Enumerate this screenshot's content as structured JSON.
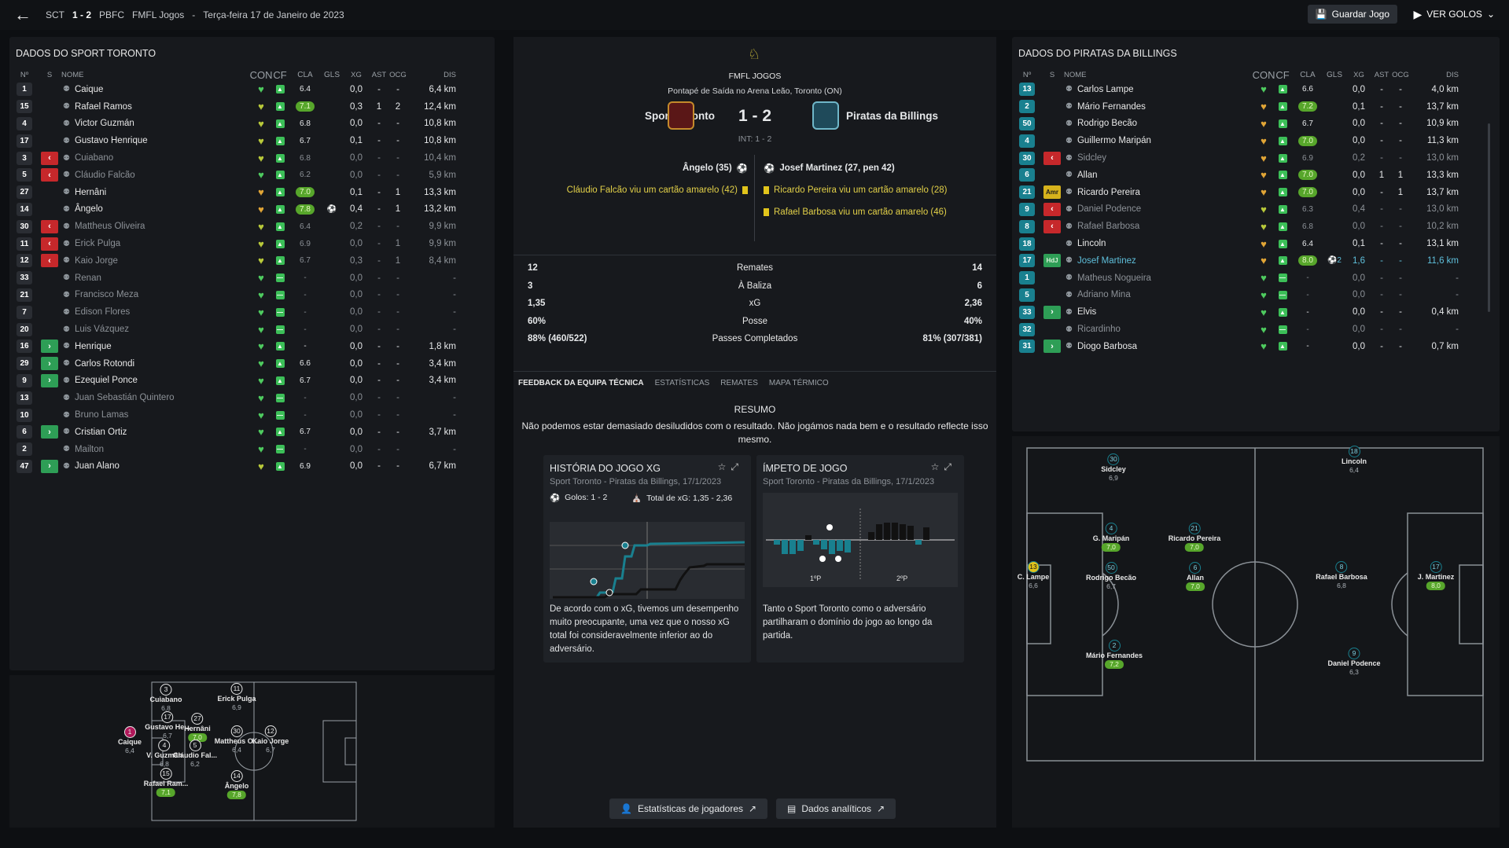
{
  "topbar": {
    "home_abbr": "SCT",
    "score": "1 - 2",
    "away_abbr": "PBFC",
    "competition": "FMFL Jogos",
    "separator": "-",
    "date": "Terça-feira 17 de Janeiro de 2023",
    "save_label": "Guardar Jogo",
    "goals_label": "VER GOLOS"
  },
  "columns": {
    "num": "Nº",
    "s": "S",
    "name": "NOME",
    "con": "CON",
    "cf": "CF",
    "cla": "CLA",
    "gls": "GLS",
    "xg": "XG",
    "ast": "AST",
    "ocg": "OCG",
    "dis": "DIS"
  },
  "home_panel": {
    "title": "DADOS DO SPORT TORONTO",
    "players": [
      {
        "num": "1",
        "s": "",
        "name": "Caique",
        "heart": "g",
        "cla": "6.4",
        "gls": "",
        "xg": "0,0",
        "ast": "-",
        "ocg": "-",
        "dis": "6,4 km",
        "dim": false
      },
      {
        "num": "15",
        "s": "",
        "name": "Rafael Ramos",
        "heart": "y",
        "cla": "7.1",
        "clag": true,
        "gls": "",
        "xg": "0,3",
        "ast": "1",
        "ocg": "2",
        "dis": "12,4 km",
        "dim": false
      },
      {
        "num": "4",
        "s": "",
        "name": "Victor Guzmán",
        "heart": "y",
        "cla": "6.8",
        "gls": "",
        "xg": "0,0",
        "ast": "-",
        "ocg": "-",
        "dis": "10,8 km",
        "dim": false
      },
      {
        "num": "17",
        "s": "",
        "name": "Gustavo Henrique",
        "heart": "y",
        "cla": "6.7",
        "gls": "",
        "xg": "0,1",
        "ast": "-",
        "ocg": "-",
        "dis": "10,8 km",
        "dim": false
      },
      {
        "num": "3",
        "s": "off",
        "name": "Cuiabano",
        "heart": "y",
        "cla": "6.8",
        "gls": "",
        "xg": "0,0",
        "ast": "-",
        "ocg": "-",
        "dis": "10,4 km",
        "dim": true
      },
      {
        "num": "5",
        "s": "off",
        "name": "Cláudio Falcão",
        "heart": "g",
        "cla": "6.2",
        "gls": "",
        "xg": "0,0",
        "ast": "-",
        "ocg": "-",
        "dis": "5,9 km",
        "dim": true
      },
      {
        "num": "27",
        "s": "",
        "name": "Hernâni",
        "heart": "o",
        "cla": "7.0",
        "clag": true,
        "gls": "",
        "xg": "0,1",
        "ast": "-",
        "ocg": "1",
        "dis": "13,3 km",
        "dim": false
      },
      {
        "num": "14",
        "s": "",
        "name": "Ângelo",
        "heart": "o",
        "cla": "7.8",
        "clag": true,
        "gls": "⚽",
        "xg": "0,4",
        "ast": "-",
        "ocg": "1",
        "dis": "13,2 km",
        "dim": false
      },
      {
        "num": "30",
        "s": "off",
        "name": "Mattheus Oliveira",
        "heart": "y",
        "cla": "6.4",
        "gls": "",
        "xg": "0,2",
        "ast": "-",
        "ocg": "-",
        "dis": "9,9 km",
        "dim": true
      },
      {
        "num": "11",
        "s": "off",
        "name": "Erick Pulga",
        "heart": "y",
        "cla": "6.9",
        "gls": "",
        "xg": "0,0",
        "ast": "-",
        "ocg": "1",
        "dis": "9,9 km",
        "dim": true
      },
      {
        "num": "12",
        "s": "off",
        "name": "Kaio Jorge",
        "heart": "y",
        "cla": "6.7",
        "gls": "",
        "xg": "0,3",
        "ast": "-",
        "ocg": "1",
        "dis": "8,4 km",
        "dim": true
      },
      {
        "num": "33",
        "s": "",
        "name": "Renan",
        "heart": "g",
        "cla": "-",
        "gls": "",
        "xg": "0,0",
        "ast": "-",
        "ocg": "-",
        "dis": "-",
        "dim": true
      },
      {
        "num": "21",
        "s": "",
        "name": "Francisco Meza",
        "heart": "g",
        "cla": "-",
        "gls": "",
        "xg": "0,0",
        "ast": "-",
        "ocg": "-",
        "dis": "-",
        "dim": true
      },
      {
        "num": "7",
        "s": "",
        "name": "Edison Flores",
        "heart": "g",
        "cla": "-",
        "gls": "",
        "xg": "0,0",
        "ast": "-",
        "ocg": "-",
        "dis": "-",
        "dim": true
      },
      {
        "num": "20",
        "s": "",
        "name": "Luis Vázquez",
        "heart": "g",
        "cla": "-",
        "gls": "",
        "xg": "0,0",
        "ast": "-",
        "ocg": "-",
        "dis": "-",
        "dim": true
      },
      {
        "num": "16",
        "s": "on",
        "name": "Henrique",
        "heart": "g",
        "cla": "-",
        "gls": "",
        "xg": "0,0",
        "ast": "-",
        "ocg": "-",
        "dis": "1,8 km",
        "dim": false
      },
      {
        "num": "29",
        "s": "on",
        "name": "Carlos Rotondi",
        "heart": "g",
        "cla": "6.6",
        "gls": "",
        "xg": "0,0",
        "ast": "-",
        "ocg": "-",
        "dis": "3,4 km",
        "dim": false
      },
      {
        "num": "9",
        "s": "on",
        "name": "Ezequiel Ponce",
        "heart": "g",
        "cla": "6.7",
        "gls": "",
        "xg": "0,0",
        "ast": "-",
        "ocg": "-",
        "dis": "3,4 km",
        "dim": false
      },
      {
        "num": "13",
        "s": "",
        "name": "Juan Sebastián Quintero",
        "heart": "g",
        "cla": "-",
        "gls": "",
        "xg": "0,0",
        "ast": "-",
        "ocg": "-",
        "dis": "-",
        "dim": true
      },
      {
        "num": "10",
        "s": "",
        "name": "Bruno Lamas",
        "heart": "g",
        "cla": "-",
        "gls": "",
        "xg": "0,0",
        "ast": "-",
        "ocg": "-",
        "dis": "-",
        "dim": true
      },
      {
        "num": "6",
        "s": "on",
        "name": "Cristian Ortiz",
        "heart": "g",
        "cla": "6.7",
        "gls": "",
        "xg": "0,0",
        "ast": "-",
        "ocg": "-",
        "dis": "3,7 km",
        "dim": false
      },
      {
        "num": "2",
        "s": "",
        "name": "Mailton",
        "heart": "g",
        "cla": "-",
        "gls": "",
        "xg": "0,0",
        "ast": "-",
        "ocg": "-",
        "dis": "-",
        "dim": true
      },
      {
        "num": "47",
        "s": "on",
        "name": "Juan Alano",
        "heart": "y",
        "cla": "6.9",
        "gls": "",
        "xg": "0,0",
        "ast": "-",
        "ocg": "-",
        "dis": "6,7 km",
        "dim": false
      }
    ]
  },
  "away_panel": {
    "title": "DADOS DO PIRATAS DA BILLINGS",
    "players": [
      {
        "num": "13",
        "s": "",
        "name": "Carlos Lampe",
        "heart": "g",
        "cla": "6.6",
        "gls": "",
        "xg": "0,0",
        "ast": "-",
        "ocg": "-",
        "dis": "4,0 km",
        "dim": false
      },
      {
        "num": "2",
        "s": "",
        "name": "Mário Fernandes",
        "heart": "o",
        "cla": "7.2",
        "clag": true,
        "gls": "",
        "xg": "0,1",
        "ast": "-",
        "ocg": "-",
        "dis": "13,7 km",
        "dim": false
      },
      {
        "num": "50",
        "s": "",
        "name": "Rodrigo Becão",
        "heart": "o",
        "cla": "6.7",
        "gls": "",
        "xg": "0,0",
        "ast": "-",
        "ocg": "-",
        "dis": "10,9 km",
        "dim": false
      },
      {
        "num": "4",
        "s": "",
        "name": "Guillermo Maripán",
        "heart": "o",
        "cla": "7.0",
        "clag": true,
        "gls": "",
        "xg": "0,0",
        "ast": "-",
        "ocg": "-",
        "dis": "11,3 km",
        "dim": false
      },
      {
        "num": "30",
        "s": "off",
        "name": "Sidcley",
        "heart": "o",
        "cla": "6.9",
        "gls": "",
        "xg": "0,2",
        "ast": "-",
        "ocg": "-",
        "dis": "13,0 km",
        "dim": true
      },
      {
        "num": "6",
        "s": "",
        "name": "Allan",
        "heart": "o",
        "cla": "7.0",
        "clag": true,
        "gls": "",
        "xg": "0,0",
        "ast": "1",
        "ocg": "1",
        "dis": "13,3 km",
        "dim": false
      },
      {
        "num": "21",
        "s": "amr",
        "amr": "Amr",
        "name": "Ricardo Pereira",
        "heart": "o",
        "cla": "7.0",
        "clag": true,
        "gls": "",
        "xg": "0,0",
        "ast": "-",
        "ocg": "1",
        "dis": "13,7 km",
        "dim": false
      },
      {
        "num": "9",
        "s": "off",
        "name": "Daniel Podence",
        "heart": "y",
        "cla": "6.3",
        "gls": "",
        "xg": "0,4",
        "ast": "-",
        "ocg": "-",
        "dis": "13,0 km",
        "dim": true
      },
      {
        "num": "8",
        "s": "off",
        "name": "Rafael Barbosa",
        "heart": "y",
        "cla": "6.8",
        "gls": "",
        "xg": "0,0",
        "ast": "-",
        "ocg": "-",
        "dis": "10,2 km",
        "dim": true
      },
      {
        "num": "18",
        "s": "",
        "name": "Lincoln",
        "heart": "o",
        "cla": "6.4",
        "gls": "",
        "xg": "0,1",
        "ast": "-",
        "ocg": "-",
        "dis": "13,1 km",
        "dim": false
      },
      {
        "num": "17",
        "s": "hdj",
        "hdj": "HdJ",
        "name": "Josef Martinez",
        "heart": "o",
        "cla": "8.0",
        "clag": true,
        "gls": "⚽2",
        "xg": "1,6",
        "ast": "-",
        "ocg": "-",
        "dis": "11,6 km",
        "dim": false,
        "hl": true
      },
      {
        "num": "1",
        "s": "",
        "name": "Matheus Nogueira",
        "heart": "g",
        "cla": "-",
        "gls": "",
        "xg": "0,0",
        "ast": "-",
        "ocg": "-",
        "dis": "-",
        "dim": true
      },
      {
        "num": "5",
        "s": "",
        "name": "Adriano Mina",
        "heart": "g",
        "cla": "-",
        "gls": "",
        "xg": "0,0",
        "ast": "-",
        "ocg": "-",
        "dis": "-",
        "dim": true
      },
      {
        "num": "33",
        "s": "on",
        "name": "Elvis",
        "heart": "g",
        "cla": "-",
        "gls": "",
        "xg": "0,0",
        "ast": "-",
        "ocg": "-",
        "dis": "0,4 km",
        "dim": false
      },
      {
        "num": "32",
        "s": "",
        "name": "Ricardinho",
        "heart": "g",
        "cla": "-",
        "gls": "",
        "xg": "0,0",
        "ast": "-",
        "ocg": "-",
        "dis": "-",
        "dim": true
      },
      {
        "num": "31",
        "s": "on",
        "name": "Diogo Barbosa",
        "heart": "g",
        "cla": "-",
        "gls": "",
        "xg": "0,0",
        "ast": "-",
        "ocg": "-",
        "dis": "0,7 km",
        "dim": false
      }
    ]
  },
  "home_pitch": [
    {
      "n": "3",
      "nm": "Cuiabano",
      "rt": "6,8"
    },
    {
      "n": "11",
      "nm": "Erick Pulga",
      "rt": "6,9"
    },
    {
      "n": "17",
      "nm": "Gustavo He...",
      "rt": "6,7"
    },
    {
      "n": "27",
      "nm": "Hernâni",
      "rt": "7,0",
      "g": true
    },
    {
      "n": "1",
      "nm": "Caique",
      "rt": "6,4",
      "gk": true
    },
    {
      "n": "30",
      "nm": "Mattheus O...",
      "rt": "6,4"
    },
    {
      "n": "12",
      "nm": "Kaio Jorge",
      "rt": "6,7"
    },
    {
      "n": "4",
      "nm": "V. Guzmán",
      "rt": "6,8"
    },
    {
      "n": "5",
      "nm": "Cláudio Fal...",
      "rt": "6,2"
    },
    {
      "n": "15",
      "nm": "Rafael Ram...",
      "rt": "7,1",
      "g": true
    },
    {
      "n": "14",
      "nm": "Ângelo",
      "rt": "7,8",
      "g": true
    }
  ],
  "away_pitch": [
    {
      "n": "30",
      "nm": "Sidcley",
      "rt": "6,9"
    },
    {
      "n": "18",
      "nm": "Lincoln",
      "rt": "6,4"
    },
    {
      "n": "4",
      "nm": "G. Maripán",
      "rt": "7,0",
      "g": true
    },
    {
      "n": "21",
      "nm": "Ricardo Pereira",
      "rt": "7,0",
      "g": true
    },
    {
      "n": "13",
      "nm": "C. Lampe",
      "rt": "6,6",
      "gk": true
    },
    {
      "n": "8",
      "nm": "Rafael Barbosa",
      "rt": "6,8"
    },
    {
      "n": "17",
      "nm": "J. Martinez",
      "rt": "8,0",
      "g": true
    },
    {
      "n": "50",
      "nm": "Rodrigo Becão",
      "rt": "6,7"
    },
    {
      "n": "6",
      "nm": "Allan",
      "rt": "7,0",
      "g": true
    },
    {
      "n": "2",
      "nm": "Mário Fernandes",
      "rt": "7,2",
      "g": true
    },
    {
      "n": "9",
      "nm": "Daniel Podence",
      "rt": "6,3"
    }
  ],
  "match": {
    "competition": "FMFL JOGOS",
    "venue": "Pontapé de Saída no Arena Leão, Toronto (ON)",
    "home": "Sport Toronto",
    "away": "Piratas da Billings",
    "score": "1 - 2",
    "interval": "INT: 1 - 2",
    "home_events": [
      "Ângelo (35)",
      "Cláudio Falcão viu um cartão amarelo (42)"
    ],
    "away_events": [
      "Josef Martinez (27, pen 42)",
      "Ricardo Pereira viu um cartão amarelo (28)",
      "Rafael Barbosa viu um cartão amarelo (46)"
    ]
  },
  "stats": [
    {
      "l": "12",
      "m": "Remates",
      "r": "14"
    },
    {
      "l": "3",
      "m": "À Baliza",
      "r": "6"
    },
    {
      "l": "1,35",
      "m": "xG",
      "r": "2,36"
    },
    {
      "l": "60%",
      "m": "Posse",
      "r": "40%"
    },
    {
      "l": "88% (460/522)",
      "m": "Passes Completados",
      "r": "81% (307/381)"
    }
  ],
  "tabs": [
    "FEEDBACK DA EQUIPA TÉCNICA",
    "ESTATÍSTICAS",
    "REMATES",
    "MAPA TÉRMICO"
  ],
  "resumo": {
    "title": "RESUMO",
    "text": "Não podemos estar demasiado desiludidos com o resultado. Não jogámos nada bem e o resultado reflecte isso mesmo."
  },
  "card_xg": {
    "title": "HISTÓRIA DO JOGO XG",
    "sub": "Sport Toronto - Piratas da Billings, 17/1/2023",
    "goals": "Golos: 1 - 2",
    "total": "Total de xG: 1,35 - 2,36",
    "text": "De acordo com o xG, tivemos um desempenho muito preocupante, uma vez que o nosso xG total foi consideravelmente inferior ao do adversário."
  },
  "card_mom": {
    "title": "ÍMPETO DE JOGO",
    "sub": "Sport Toronto - Piratas da Billings, 17/1/2023",
    "h1": "1ºP",
    "h2": "2ºP",
    "text": "Tanto o Sport Toronto como o adversário partilharam o domínio do jogo ao longo da partida."
  },
  "bottom": {
    "players_btn": "Estatísticas de jogadores",
    "analytics_btn": "Dados analíticos"
  },
  "colors": {
    "accent_green": "#57a62b",
    "teal": "#19808f",
    "red": "#c6282b",
    "yellow": "#e1c41b"
  }
}
